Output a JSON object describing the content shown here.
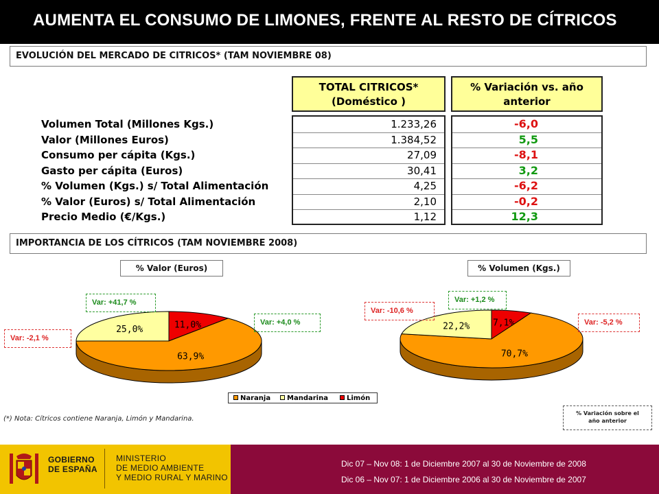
{
  "title": "AUMENTA EL CONSUMO DE LIMONES, FRENTE AL RESTO DE CÍTRICOS",
  "section1": "EVOLUCIÓN DEL MERCADO DE CITRICOS* (TAM NOVIEMBRE 08)",
  "table": {
    "header_total": [
      "TOTAL CITRICOS*",
      "(Doméstico )"
    ],
    "header_var": [
      "% Variación vs. año",
      "anterior"
    ],
    "rows": [
      {
        "label": "Volumen Total (Millones Kgs.)",
        "value": "1.233,26",
        "var": "-6,0",
        "color": "#dd1111"
      },
      {
        "label": "Valor (Millones Euros)",
        "value": "1.384,52",
        "var": "5,5",
        "color": "#119911"
      },
      {
        "label": "Consumo per cápita (Kgs.)",
        "value": "27,09",
        "var": "-8,1",
        "color": "#dd1111"
      },
      {
        "label": "Gasto per cápita (Euros)",
        "value": "30,41",
        "var": "3,2",
        "color": "#119911"
      },
      {
        "label": "% Volumen (Kgs.) s/ Total Alimentación",
        "value": "4,25",
        "var": "-6,2",
        "color": "#dd1111"
      },
      {
        "label": "% Valor (Euros) s/ Total Alimentación",
        "value": "2,10",
        "var": "-0,2",
        "color": "#dd1111"
      },
      {
        "label": "Precio Medio (€/Kgs.)",
        "value": "1,12",
        "var": "12,3",
        "color": "#119911"
      }
    ]
  },
  "section2": "IMPORTANCIA DE LOS CÍTRICOS (TAM NOVIEMBRE 2008)",
  "chart_data": [
    {
      "type": "pie",
      "title": "% Valor (Euros)",
      "categories": [
        "Naranja",
        "Mandarina",
        "Limón"
      ],
      "values": [
        63.9,
        25.0,
        11.0
      ],
      "data_labels": [
        "63,9%",
        "25,0%",
        "11,0%"
      ],
      "variations": [
        "Var: +4,0 %",
        "Var: -2,1 %",
        "Var: +41,7 %"
      ],
      "colors": [
        "#ff9900",
        "#ffffa0",
        "#ee0000"
      ]
    },
    {
      "type": "pie",
      "title": "% Volumen (Kgs.)",
      "categories": [
        "Naranja",
        "Mandarina",
        "Limón"
      ],
      "values": [
        70.7,
        22.2,
        7.1
      ],
      "data_labels": [
        "70,7%",
        "22,2%",
        "7,1%"
      ],
      "variations": [
        "Var: -5,2 %",
        "Var: -10,6 %",
        "Var: +1,2 %"
      ],
      "colors": [
        "#ff9900",
        "#ffffa0",
        "#ee0000"
      ]
    }
  ],
  "legend": [
    "Naranja",
    "Mandarina",
    "Limón"
  ],
  "note": "(*) Nota: Cítricos contiene Naranja, Limón y Mandarina.",
  "variacion_note": [
    "% Variación sobre el",
    "año anterior"
  ],
  "footer": {
    "gov1": [
      "GOBIERNO",
      "DE ESPAÑA"
    ],
    "gov2": [
      "MINISTERIO",
      "DE MEDIO AMBIENTE",
      "Y MEDIO RURAL Y MARINO"
    ],
    "line1": "Dic 07 – Nov 08: 1 de Diciembre 2007 al 30 de Noviembre de 2008",
    "line2": "Dic 06 – Nov 07: 1 de Diciembre 2006 al 30 de Noviembre de 2007"
  }
}
